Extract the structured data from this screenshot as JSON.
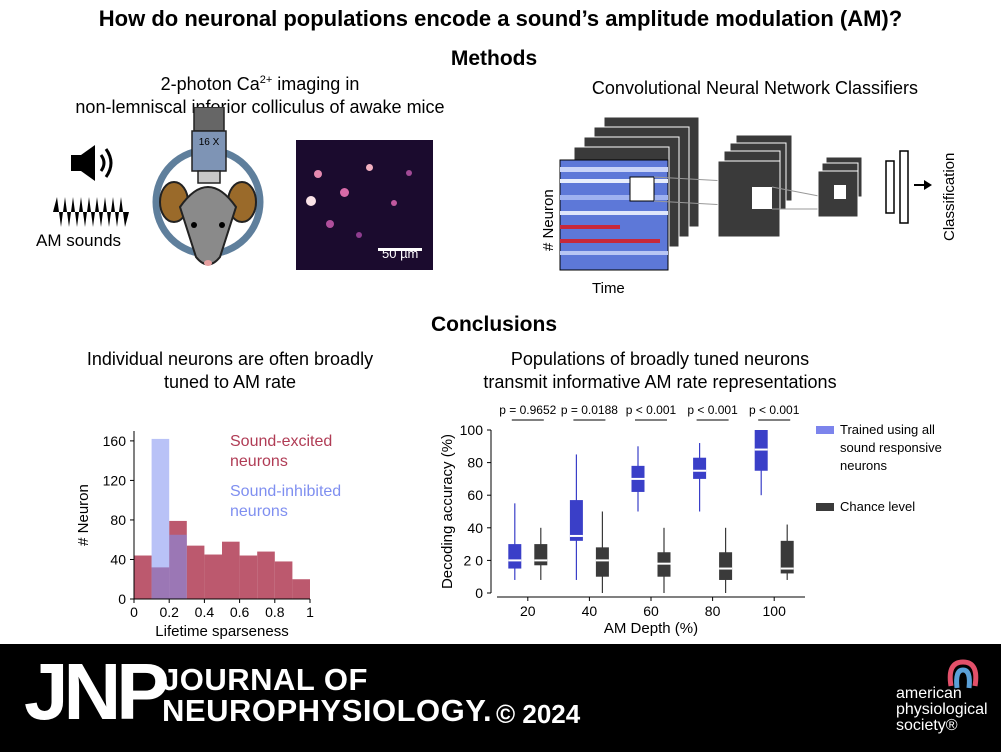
{
  "title": "How do neuronal populations encode a sound’s amplitude modulation (AM)?",
  "methods": {
    "heading": "Methods",
    "imaging_line1_prefix": "2-photon Ca",
    "imaging_line1_sup": "2+",
    "imaging_line1_suffix": " imaging in",
    "imaging_line2": "non-lemniscal inferior colliculus of awake mice",
    "am_sounds_label": "AM sounds",
    "objective_label": "16 X",
    "scale_bar_label": "50 µm",
    "cnn_title": "Convolutional Neural Network Classifiers",
    "cnn_ylabel": "# Neuron",
    "cnn_xlabel": "Time",
    "cnn_output_label": "Classification"
  },
  "conclusions": {
    "heading": "Conclusions",
    "left_text_line1": "Individual neurons are often broadly",
    "left_text_line2": "tuned to AM rate",
    "right_text_line1": "Populations of broadly tuned neurons",
    "right_text_line2": "transmit informative AM rate representations"
  },
  "footer": {
    "journal_abbrev": "JNP",
    "journal_line1": "JOURNAL OF",
    "journal_line2": "NEUROPHYSIOLOGY.",
    "copyright": "© 2024",
    "society_line1": "american",
    "society_line2": "physiological",
    "society_line3": "society®"
  },
  "colors": {
    "excited": "#b03c55",
    "inhibited": "#7f8ff0",
    "trained": "#3a3fc8",
    "chance": "#3a3a3a",
    "footer_bg": "#000000"
  },
  "chart_data": [
    {
      "type": "bar",
      "xlabel": "Lifetime sparseness",
      "ylabel": "# Neuron",
      "xlim": [
        0,
        1
      ],
      "ylim": [
        0,
        170
      ],
      "x_ticks": [
        "0",
        "0.2",
        "0.4",
        "0.6",
        "0.8",
        "1"
      ],
      "y_ticks": [
        "0",
        "40",
        "80",
        "120",
        "160"
      ],
      "bin_edges": [
        0,
        0.1,
        0.2,
        0.3,
        0.4,
        0.5,
        0.6,
        0.7,
        0.8,
        0.9,
        1.0
      ],
      "series": [
        {
          "name": "Sound-excited neurons",
          "values": [
            44,
            32,
            79,
            54,
            45,
            58,
            44,
            48,
            38,
            20
          ]
        },
        {
          "name": "Sound-inhibited neurons",
          "values": [
            0,
            162,
            65,
            0,
            0,
            0,
            0,
            0,
            0,
            0
          ]
        }
      ],
      "legend_excited_line1": "Sound-excited",
      "legend_excited_line2": "neurons",
      "legend_inhibited_line1": "Sound-inhibited",
      "legend_inhibited_line2": "neurons"
    },
    {
      "type": "box",
      "xlabel": "AM Depth (%)",
      "ylabel": "Decoding accuracy (%)",
      "ylim": [
        0,
        100
      ],
      "categories": [
        "20",
        "40",
        "60",
        "80",
        "100"
      ],
      "y_ticks": [
        "0",
        "2 0",
        "40",
        "60",
        "80",
        "100"
      ],
      "p_values": [
        "p = 0.9652",
        "p = 0.0188",
        "p < 0.001",
        "p < 0.001",
        "p < 0.001"
      ],
      "series": [
        {
          "name": "Trained using all sound responsive neurons",
          "legend_lines": [
            "Trained using all",
            "sound responsive",
            "neurons"
          ],
          "boxes": [
            {
              "min": 8,
              "q1": 15,
              "median": 20,
              "q3": 30,
              "max": 55
            },
            {
              "min": 8,
              "q1": 32,
              "median": 35,
              "q3": 57,
              "max": 85
            },
            {
              "min": 50,
              "q1": 62,
              "median": 70,
              "q3": 78,
              "max": 90
            },
            {
              "min": 50,
              "q1": 70,
              "median": 75,
              "q3": 83,
              "max": 92
            },
            {
              "min": 60,
              "q1": 75,
              "median": 88,
              "q3": 100,
              "max": 100
            }
          ]
        },
        {
          "name": "Chance level",
          "legend_lines": [
            "Chance level"
          ],
          "boxes": [
            {
              "min": 8,
              "q1": 17,
              "median": 20,
              "q3": 30,
              "max": 40
            },
            {
              "min": 0,
              "q1": 10,
              "median": 20,
              "q3": 28,
              "max": 50
            },
            {
              "min": 0,
              "q1": 10,
              "median": 18,
              "q3": 25,
              "max": 40
            },
            {
              "min": 0,
              "q1": 8,
              "median": 15,
              "q3": 25,
              "max": 40
            },
            {
              "min": 8,
              "q1": 12,
              "median": 15,
              "q3": 32,
              "max": 42
            }
          ]
        }
      ]
    }
  ]
}
